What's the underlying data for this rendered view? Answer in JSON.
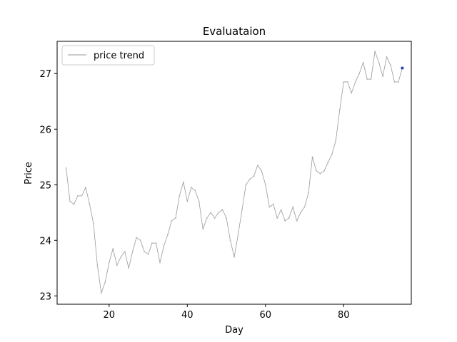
{
  "chart_data": {
    "type": "line",
    "title": "Evaluataion",
    "xlabel": "Day",
    "ylabel": "Price",
    "xlim": [
      6.7,
      97.3
    ],
    "ylim": [
      22.85,
      27.58
    ],
    "xticks": [
      20,
      40,
      60,
      80
    ],
    "yticks": [
      23,
      24,
      25,
      26,
      27
    ],
    "grid": false,
    "legend_position": "top-left",
    "series": [
      {
        "name": "price trend",
        "color": "#999999",
        "x": [
          9,
          10,
          11,
          12,
          13,
          14,
          15,
          16,
          17,
          18,
          19,
          20,
          21,
          22,
          23,
          24,
          25,
          26,
          27,
          28,
          29,
          30,
          31,
          32,
          33,
          34,
          35,
          36,
          37,
          38,
          39,
          40,
          41,
          42,
          43,
          44,
          45,
          46,
          47,
          48,
          49,
          50,
          51,
          52,
          53,
          54,
          55,
          56,
          57,
          58,
          59,
          60,
          61,
          62,
          63,
          64,
          65,
          66,
          67,
          68,
          69,
          70,
          71,
          72,
          73,
          74,
          75,
          76,
          77,
          78,
          79,
          80,
          81,
          82,
          83,
          84,
          85,
          86,
          87,
          88,
          89,
          90,
          91,
          92,
          93,
          94,
          95
        ],
        "y": [
          25.3,
          24.7,
          24.65,
          24.8,
          24.8,
          24.95,
          24.65,
          24.3,
          23.55,
          23.05,
          23.25,
          23.6,
          23.85,
          23.55,
          23.7,
          23.8,
          23.5,
          23.8,
          24.05,
          24.0,
          23.8,
          23.75,
          23.95,
          23.95,
          23.6,
          23.9,
          24.1,
          24.35,
          24.4,
          24.8,
          25.05,
          24.7,
          24.95,
          24.9,
          24.7,
          24.2,
          24.4,
          24.5,
          24.4,
          24.5,
          24.55,
          24.4,
          24.0,
          23.7,
          24.1,
          24.55,
          25.0,
          25.1,
          25.15,
          25.35,
          25.25,
          25.0,
          24.6,
          24.65,
          24.4,
          24.55,
          24.35,
          24.4,
          24.6,
          24.35,
          24.5,
          24.6,
          24.85,
          25.5,
          25.25,
          25.2,
          25.25,
          25.4,
          25.55,
          25.8,
          26.35,
          26.85,
          26.85,
          26.65,
          26.85,
          27.0,
          27.2,
          26.9,
          26.9,
          27.4,
          27.2,
          26.95,
          27.3,
          27.15,
          26.85,
          26.85,
          27.1
        ]
      }
    ],
    "highlight_point": {
      "x": 95,
      "y": 27.1,
      "color": "#1f3fbf"
    }
  }
}
